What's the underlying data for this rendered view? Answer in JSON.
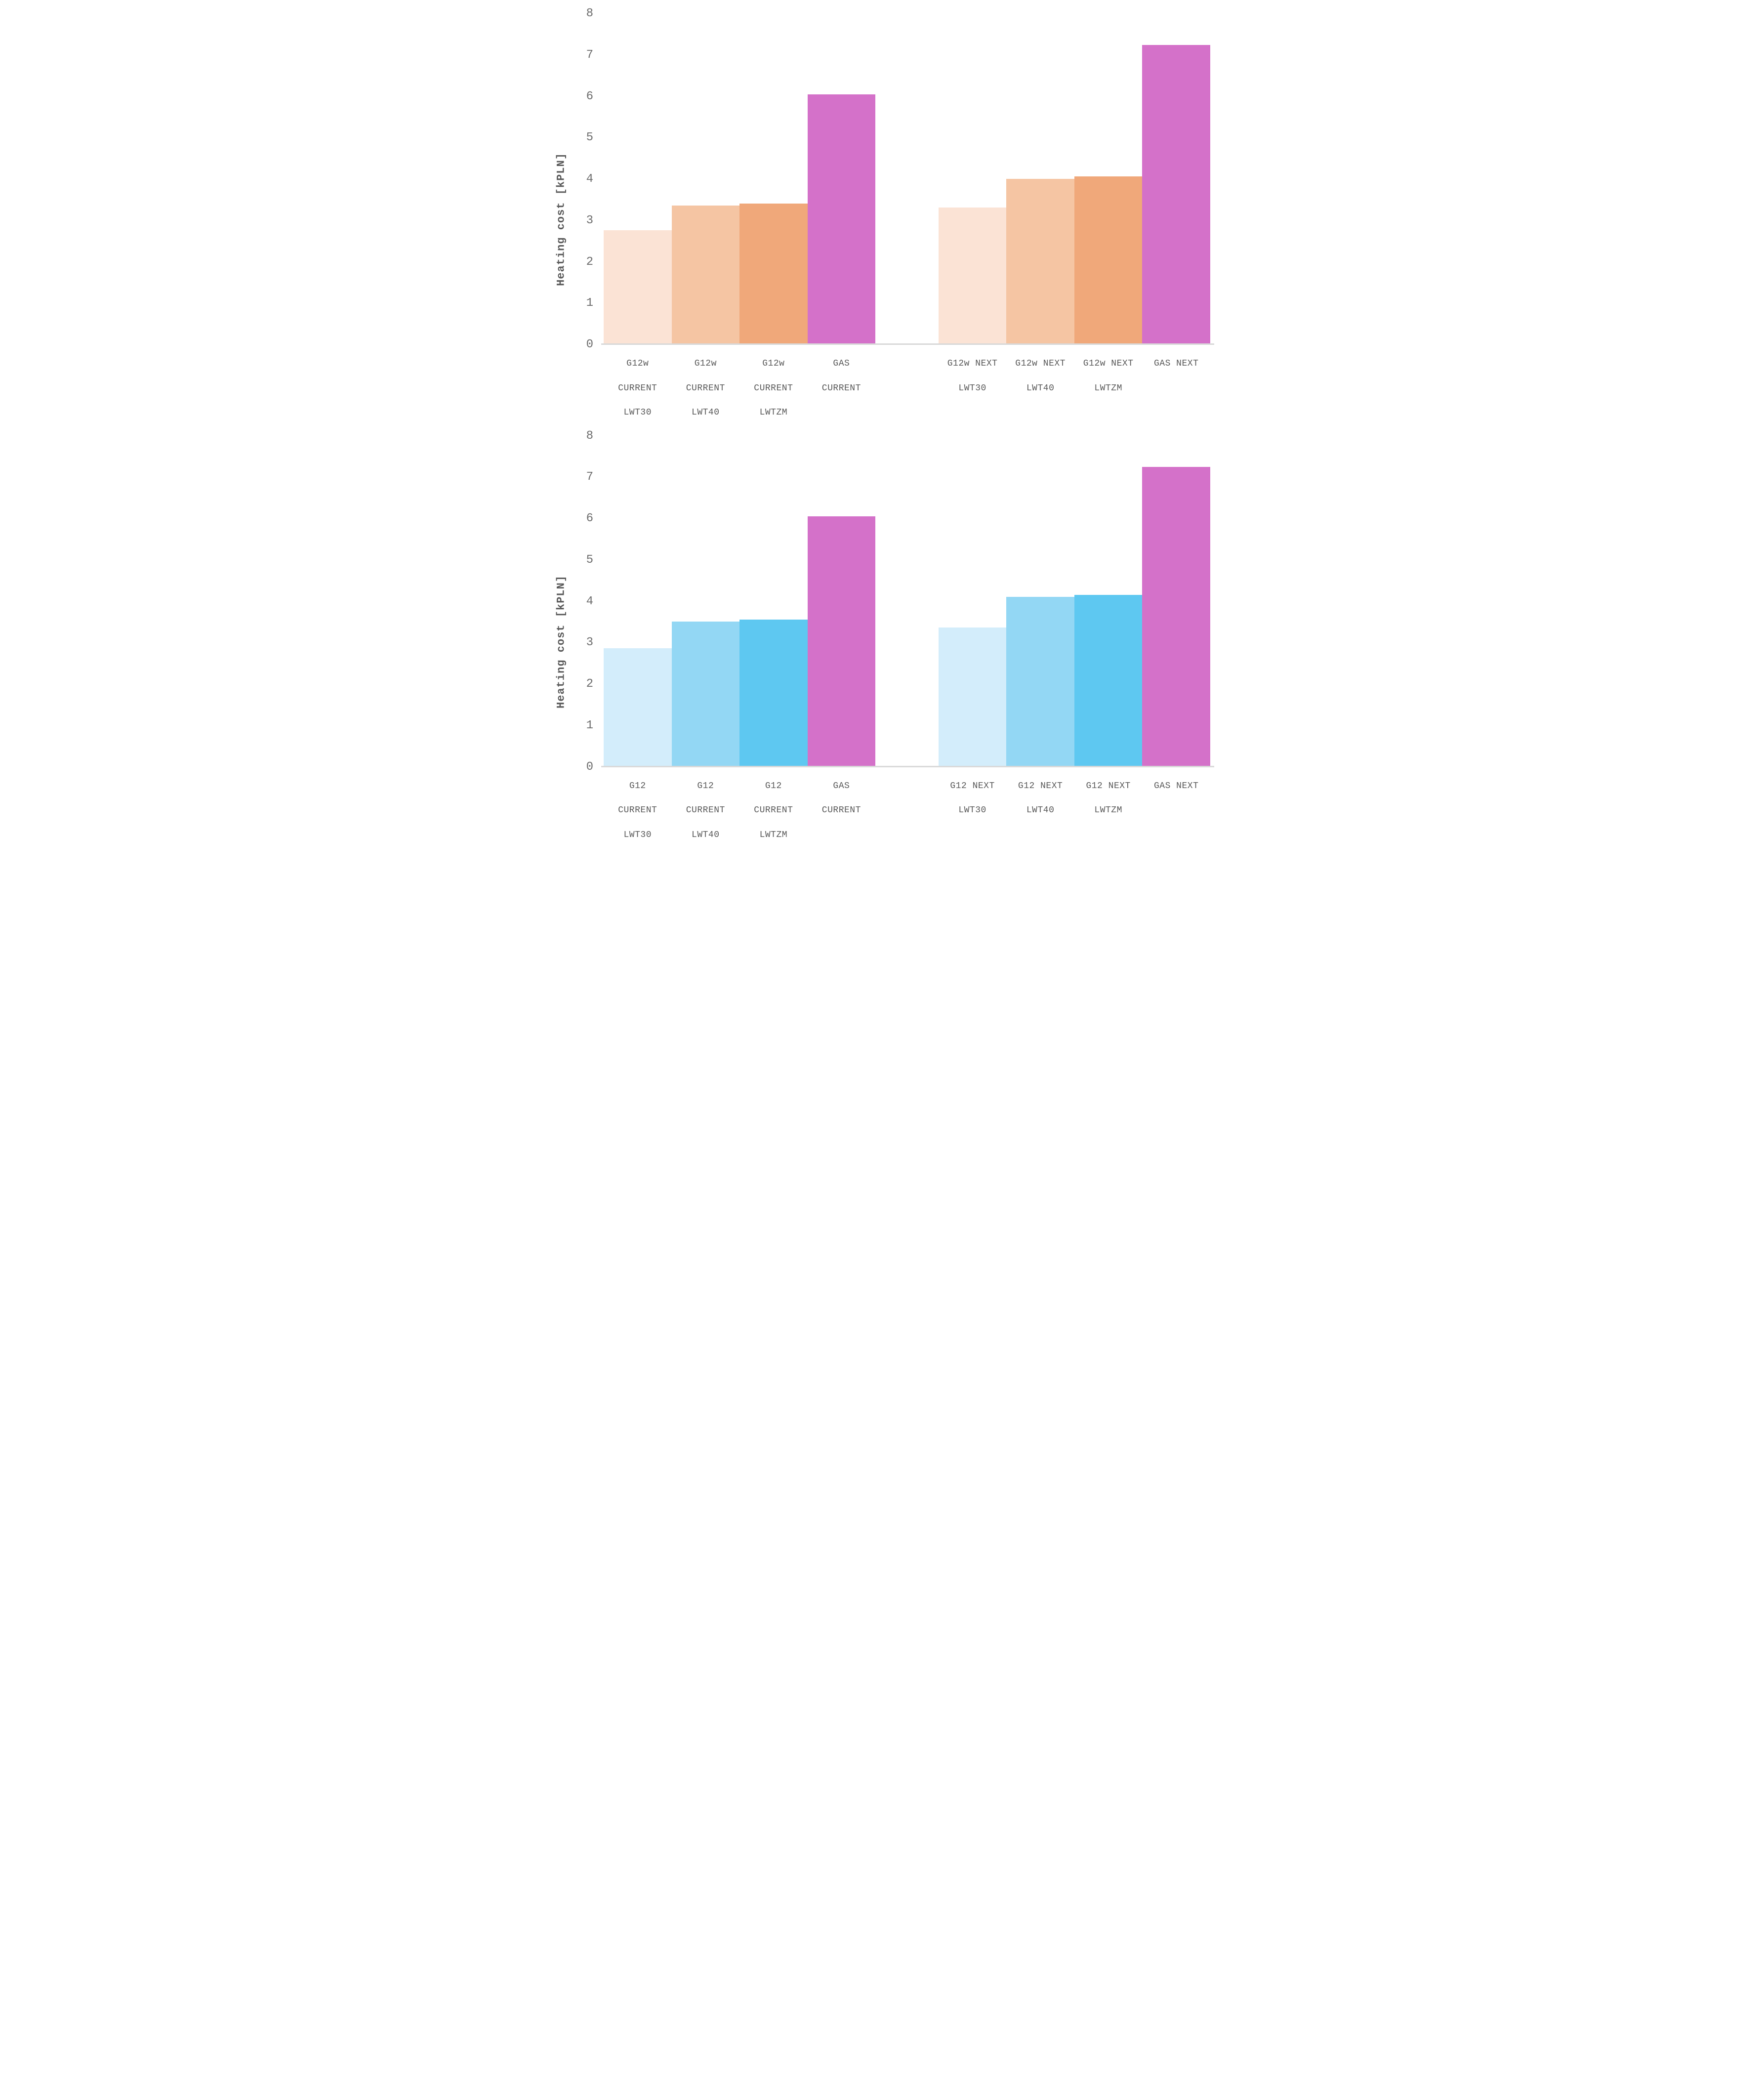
{
  "y_axis_label": "Heating cost [kPLN]",
  "chart_data": [
    {
      "type": "bar",
      "title": "",
      "xlabel": "",
      "ylabel": "Heating cost [kPLN]",
      "ylim": [
        0,
        8
      ],
      "yticks": [
        0,
        1,
        2,
        3,
        4,
        5,
        6,
        7,
        8
      ],
      "grid": false,
      "legend": null,
      "group_gap_after_index": 3,
      "categories": [
        "G12w CURRENT LWT30",
        "G12w CURRENT LWT40",
        "G12w CURRENT LWTZM",
        "GAS CURRENT",
        "G12w NEXT LWT30",
        "G12w NEXT LWT40",
        "G12w NEXT LWTZM",
        "GAS NEXT"
      ],
      "category_lines": [
        [
          "G12w",
          "CURRENT",
          "LWT30"
        ],
        [
          "G12w",
          "CURRENT",
          "LWT40"
        ],
        [
          "G12w",
          "CURRENT",
          "LWTZM"
        ],
        [
          "GAS",
          "CURRENT"
        ],
        [
          "G12w NEXT",
          "LWT30"
        ],
        [
          "G12w NEXT",
          "LWT40"
        ],
        [
          "G12w NEXT",
          "LWTZM"
        ],
        [
          "GAS NEXT"
        ]
      ],
      "values": [
        2.75,
        3.35,
        3.4,
        6.05,
        3.3,
        4.0,
        4.05,
        7.25
      ],
      "colors": [
        "#FBE3D5",
        "#F5C5A3",
        "#F0A87A",
        "#D471C9",
        "#FBE3D5",
        "#F5C5A3",
        "#F0A87A",
        "#D471C9"
      ]
    },
    {
      "type": "bar",
      "title": "",
      "xlabel": "",
      "ylabel": "Heating cost [kPLN]",
      "ylim": [
        0,
        8
      ],
      "yticks": [
        0,
        1,
        2,
        3,
        4,
        5,
        6,
        7,
        8
      ],
      "grid": false,
      "legend": null,
      "group_gap_after_index": 3,
      "categories": [
        "G12 CURRENT LWT30",
        "G12 CURRENT LWT40",
        "G12 CURRENT LWTZM",
        "GAS CURRENT",
        "G12 NEXT LWT30",
        "G12 NEXT LWT40",
        "G12 NEXT LWTZM",
        "GAS NEXT"
      ],
      "category_lines": [
        [
          "G12",
          "CURRENT",
          "LWT30"
        ],
        [
          "G12",
          "CURRENT",
          "LWT40"
        ],
        [
          "G12",
          "CURRENT",
          "LWTZM"
        ],
        [
          "GAS",
          "CURRENT"
        ],
        [
          "G12 NEXT",
          "LWT30"
        ],
        [
          "G12 NEXT",
          "LWT40"
        ],
        [
          "G12 NEXT",
          "LWTZM"
        ],
        [
          "GAS NEXT"
        ]
      ],
      "values": [
        2.85,
        3.5,
        3.55,
        6.05,
        3.35,
        4.1,
        4.15,
        7.25
      ],
      "colors": [
        "#D3EDFB",
        "#93D7F4",
        "#5EC8F1",
        "#D471C9",
        "#D3EDFB",
        "#93D7F4",
        "#5EC8F1",
        "#D471C9"
      ]
    }
  ],
  "style": {
    "text_color": "#595959",
    "axis_line_color": "#d9d9d9",
    "background": "#ffffff"
  }
}
